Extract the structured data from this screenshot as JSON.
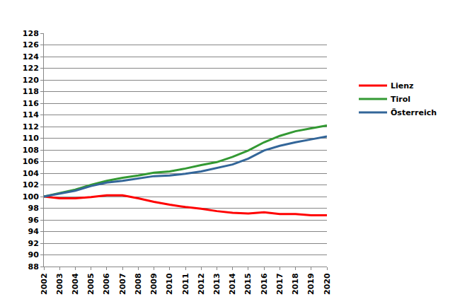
{
  "chart_data": {
    "type": "line",
    "x": [
      2002,
      2003,
      2004,
      2005,
      2006,
      2007,
      2008,
      2009,
      2010,
      2011,
      2012,
      2013,
      2014,
      2015,
      2016,
      2017,
      2018,
      2019,
      2020
    ],
    "series": [
      {
        "name": "Lienz",
        "color": "#ff0000",
        "values": [
          100,
          99.7,
          99.7,
          99.9,
          100.2,
          100.2,
          99.7,
          99.1,
          98.6,
          98.2,
          97.9,
          97.5,
          97.2,
          97.1,
          97.3,
          97.0,
          97.0,
          96.8,
          96.8
        ]
      },
      {
        "name": "Tirol",
        "color": "#339933",
        "values": [
          100,
          100.6,
          101.2,
          102.0,
          102.7,
          103.2,
          103.6,
          104.1,
          104.3,
          104.8,
          105.4,
          105.9,
          106.8,
          107.9,
          109.3,
          110.4,
          111.2,
          111.7,
          112.2
        ]
      },
      {
        "name": "Österreich",
        "color": "#336699",
        "values": [
          100,
          100.5,
          101.0,
          101.8,
          102.4,
          102.7,
          103.1,
          103.5,
          103.6,
          103.9,
          104.3,
          104.9,
          105.5,
          106.5,
          107.9,
          108.7,
          109.3,
          109.8,
          110.3
        ]
      }
    ],
    "xlim": [
      2002,
      2020
    ],
    "xticks": [
      2002,
      2003,
      2004,
      2005,
      2006,
      2007,
      2008,
      2009,
      2010,
      2011,
      2012,
      2013,
      2014,
      2015,
      2016,
      2017,
      2018,
      2019,
      2020
    ],
    "ylim": [
      88,
      128
    ],
    "yticks": [
      88,
      90,
      92,
      94,
      96,
      98,
      100,
      102,
      104,
      106,
      108,
      110,
      112,
      114,
      116,
      118,
      120,
      122,
      124,
      126,
      128
    ],
    "grid": true,
    "legend": "right"
  }
}
